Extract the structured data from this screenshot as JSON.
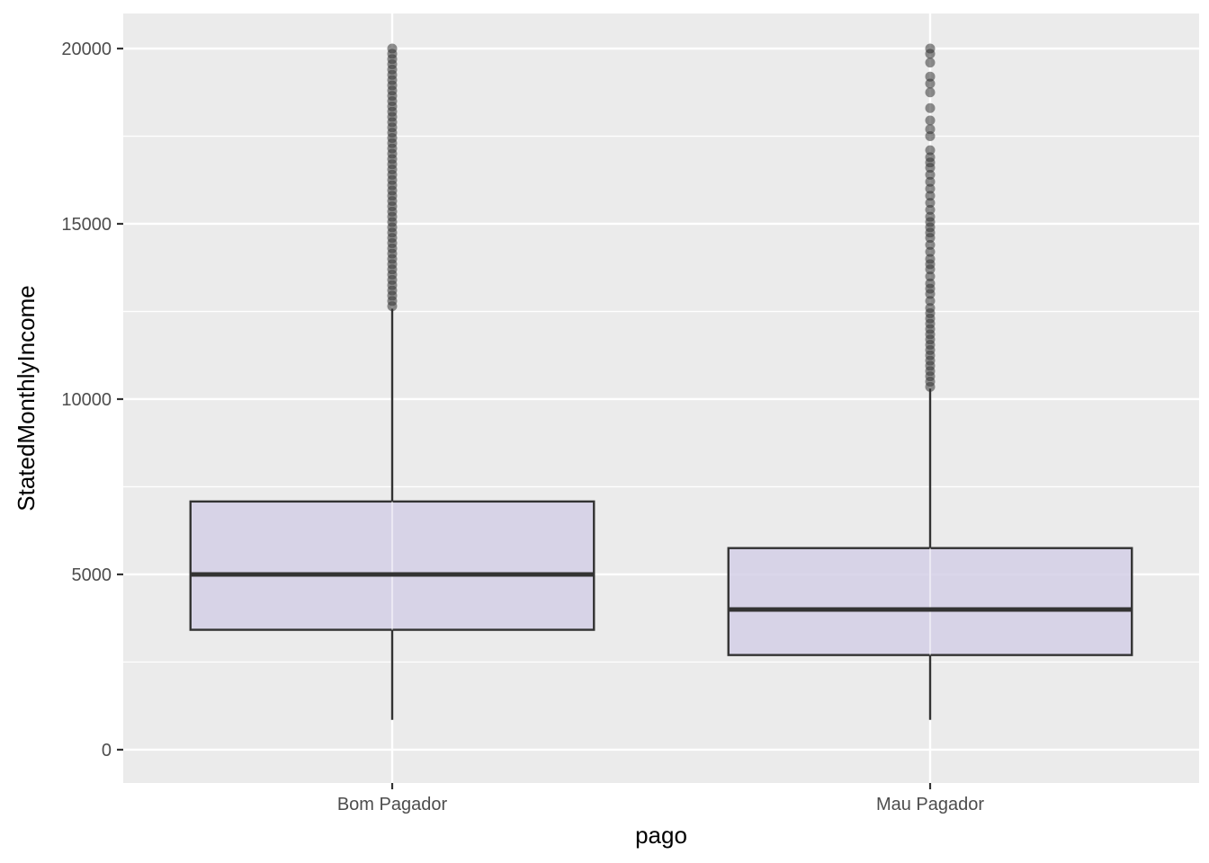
{
  "chart_data": {
    "type": "boxplot",
    "title": "",
    "xlabel": "pago",
    "ylabel": "StatedMonthlyIncome",
    "ylim": [
      -950,
      21000
    ],
    "y_ticks": [
      0,
      5000,
      10000,
      15000,
      20000
    ],
    "y_tick_labels": [
      "0",
      "5000",
      "10000",
      "15000",
      "20000"
    ],
    "grid": true,
    "legend": "none",
    "colors": {
      "panel_bg": "#ebebeb",
      "grid_major": "#ffffff",
      "box_fill": "#d4cfe6",
      "box_stroke": "#333333",
      "outlier": "#333333"
    },
    "categories": [
      "Bom Pagador",
      "Mau Pagador"
    ],
    "boxes": [
      {
        "category": "Bom Pagador",
        "whisker_low": 850,
        "q1": 3420,
        "median": 5000,
        "q3": 7080,
        "whisker_high": 12580,
        "outliers": [
          12650,
          12800,
          12950,
          13100,
          13250,
          13400,
          13550,
          13700,
          13850,
          14000,
          14150,
          14300,
          14450,
          14600,
          14750,
          14900,
          15050,
          15200,
          15350,
          15500,
          15650,
          15800,
          15950,
          16100,
          16250,
          16400,
          16550,
          16700,
          16850,
          17000,
          17150,
          17300,
          17450,
          17600,
          17750,
          17900,
          18050,
          18200,
          18350,
          18500,
          18650,
          18800,
          18950,
          19100,
          19250,
          19400,
          19550,
          19700,
          19850,
          20000
        ]
      },
      {
        "category": "Mau Pagador",
        "whisker_low": 850,
        "q1": 2700,
        "median": 4000,
        "q3": 5750,
        "whisker_high": 10300,
        "outliers": [
          10350,
          10500,
          10650,
          10800,
          10950,
          11100,
          11250,
          11400,
          11550,
          11700,
          11850,
          12000,
          12150,
          12300,
          12450,
          12600,
          12800,
          13000,
          13150,
          13300,
          13500,
          13700,
          13850,
          14000,
          14200,
          14400,
          14600,
          14750,
          14900,
          15050,
          15200,
          15400,
          15600,
          15800,
          16000,
          16200,
          16400,
          16600,
          16750,
          16900,
          17100,
          17500,
          17700,
          17950,
          18300,
          18750,
          19000,
          19200,
          19600,
          19850,
          20000
        ]
      }
    ]
  }
}
